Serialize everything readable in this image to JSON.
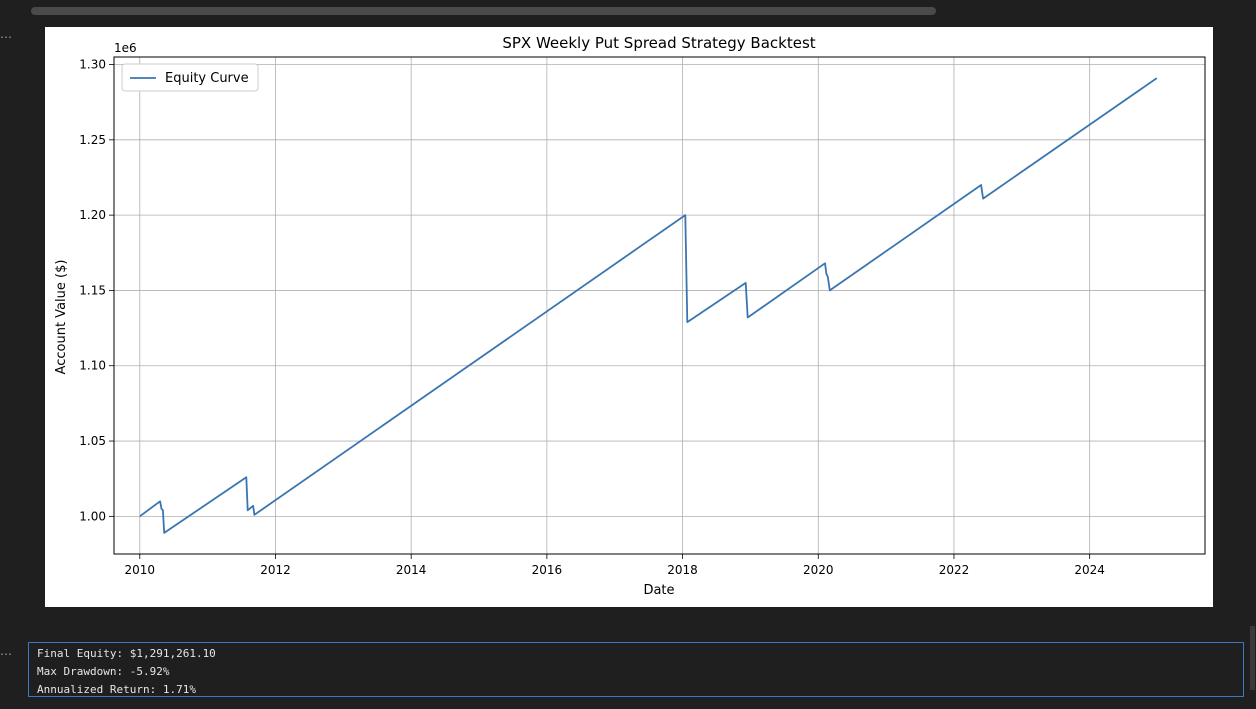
{
  "notebook": {
    "cell_prompt_1": "…",
    "cell_prompt_2": "…"
  },
  "chart_data": {
    "type": "line",
    "title": "SPX Weekly Put Spread Strategy Backtest",
    "xlabel": "Date",
    "ylabel": "Account Value ($)",
    "y_offset_label": "1e6",
    "y_scale": 1000000,
    "xlim": [
      2009.62,
      2025.7
    ],
    "ylim": [
      0.975,
      1.305
    ],
    "x_ticks": [
      2010,
      2012,
      2014,
      2016,
      2018,
      2020,
      2022,
      2024
    ],
    "x_tick_labels": [
      "2010",
      "2012",
      "2014",
      "2016",
      "2018",
      "2020",
      "2022",
      "2024"
    ],
    "y_ticks": [
      1.0,
      1.05,
      1.1,
      1.15,
      1.2,
      1.25,
      1.3
    ],
    "y_tick_labels": [
      "1.00",
      "1.05",
      "1.10",
      "1.15",
      "1.20",
      "1.25",
      "1.30"
    ],
    "grid": true,
    "legend_placement": "upper-left",
    "series": [
      {
        "name": "Equity Curve",
        "color": "#3b75af",
        "x": [
          2010.0,
          2010.3,
          2010.32,
          2010.34,
          2010.36,
          2011.57,
          2011.59,
          2011.67,
          2011.69,
          2018.04,
          2018.07,
          2018.93,
          2018.96,
          2020.1,
          2020.12,
          2020.14,
          2020.17,
          2022.4,
          2022.43,
          2024.99
        ],
        "y": [
          1.0,
          1.01,
          1.005,
          1.004,
          0.989,
          1.026,
          1.004,
          1.007,
          1.001,
          1.2,
          1.129,
          1.155,
          1.132,
          1.168,
          1.161,
          1.159,
          1.15,
          1.22,
          1.211,
          1.291
        ]
      }
    ]
  },
  "output": {
    "lines": [
      "Final Equity: $1,291,261.10",
      "Max Drawdown: -5.92%",
      "Annualized Return: 1.71%"
    ]
  }
}
